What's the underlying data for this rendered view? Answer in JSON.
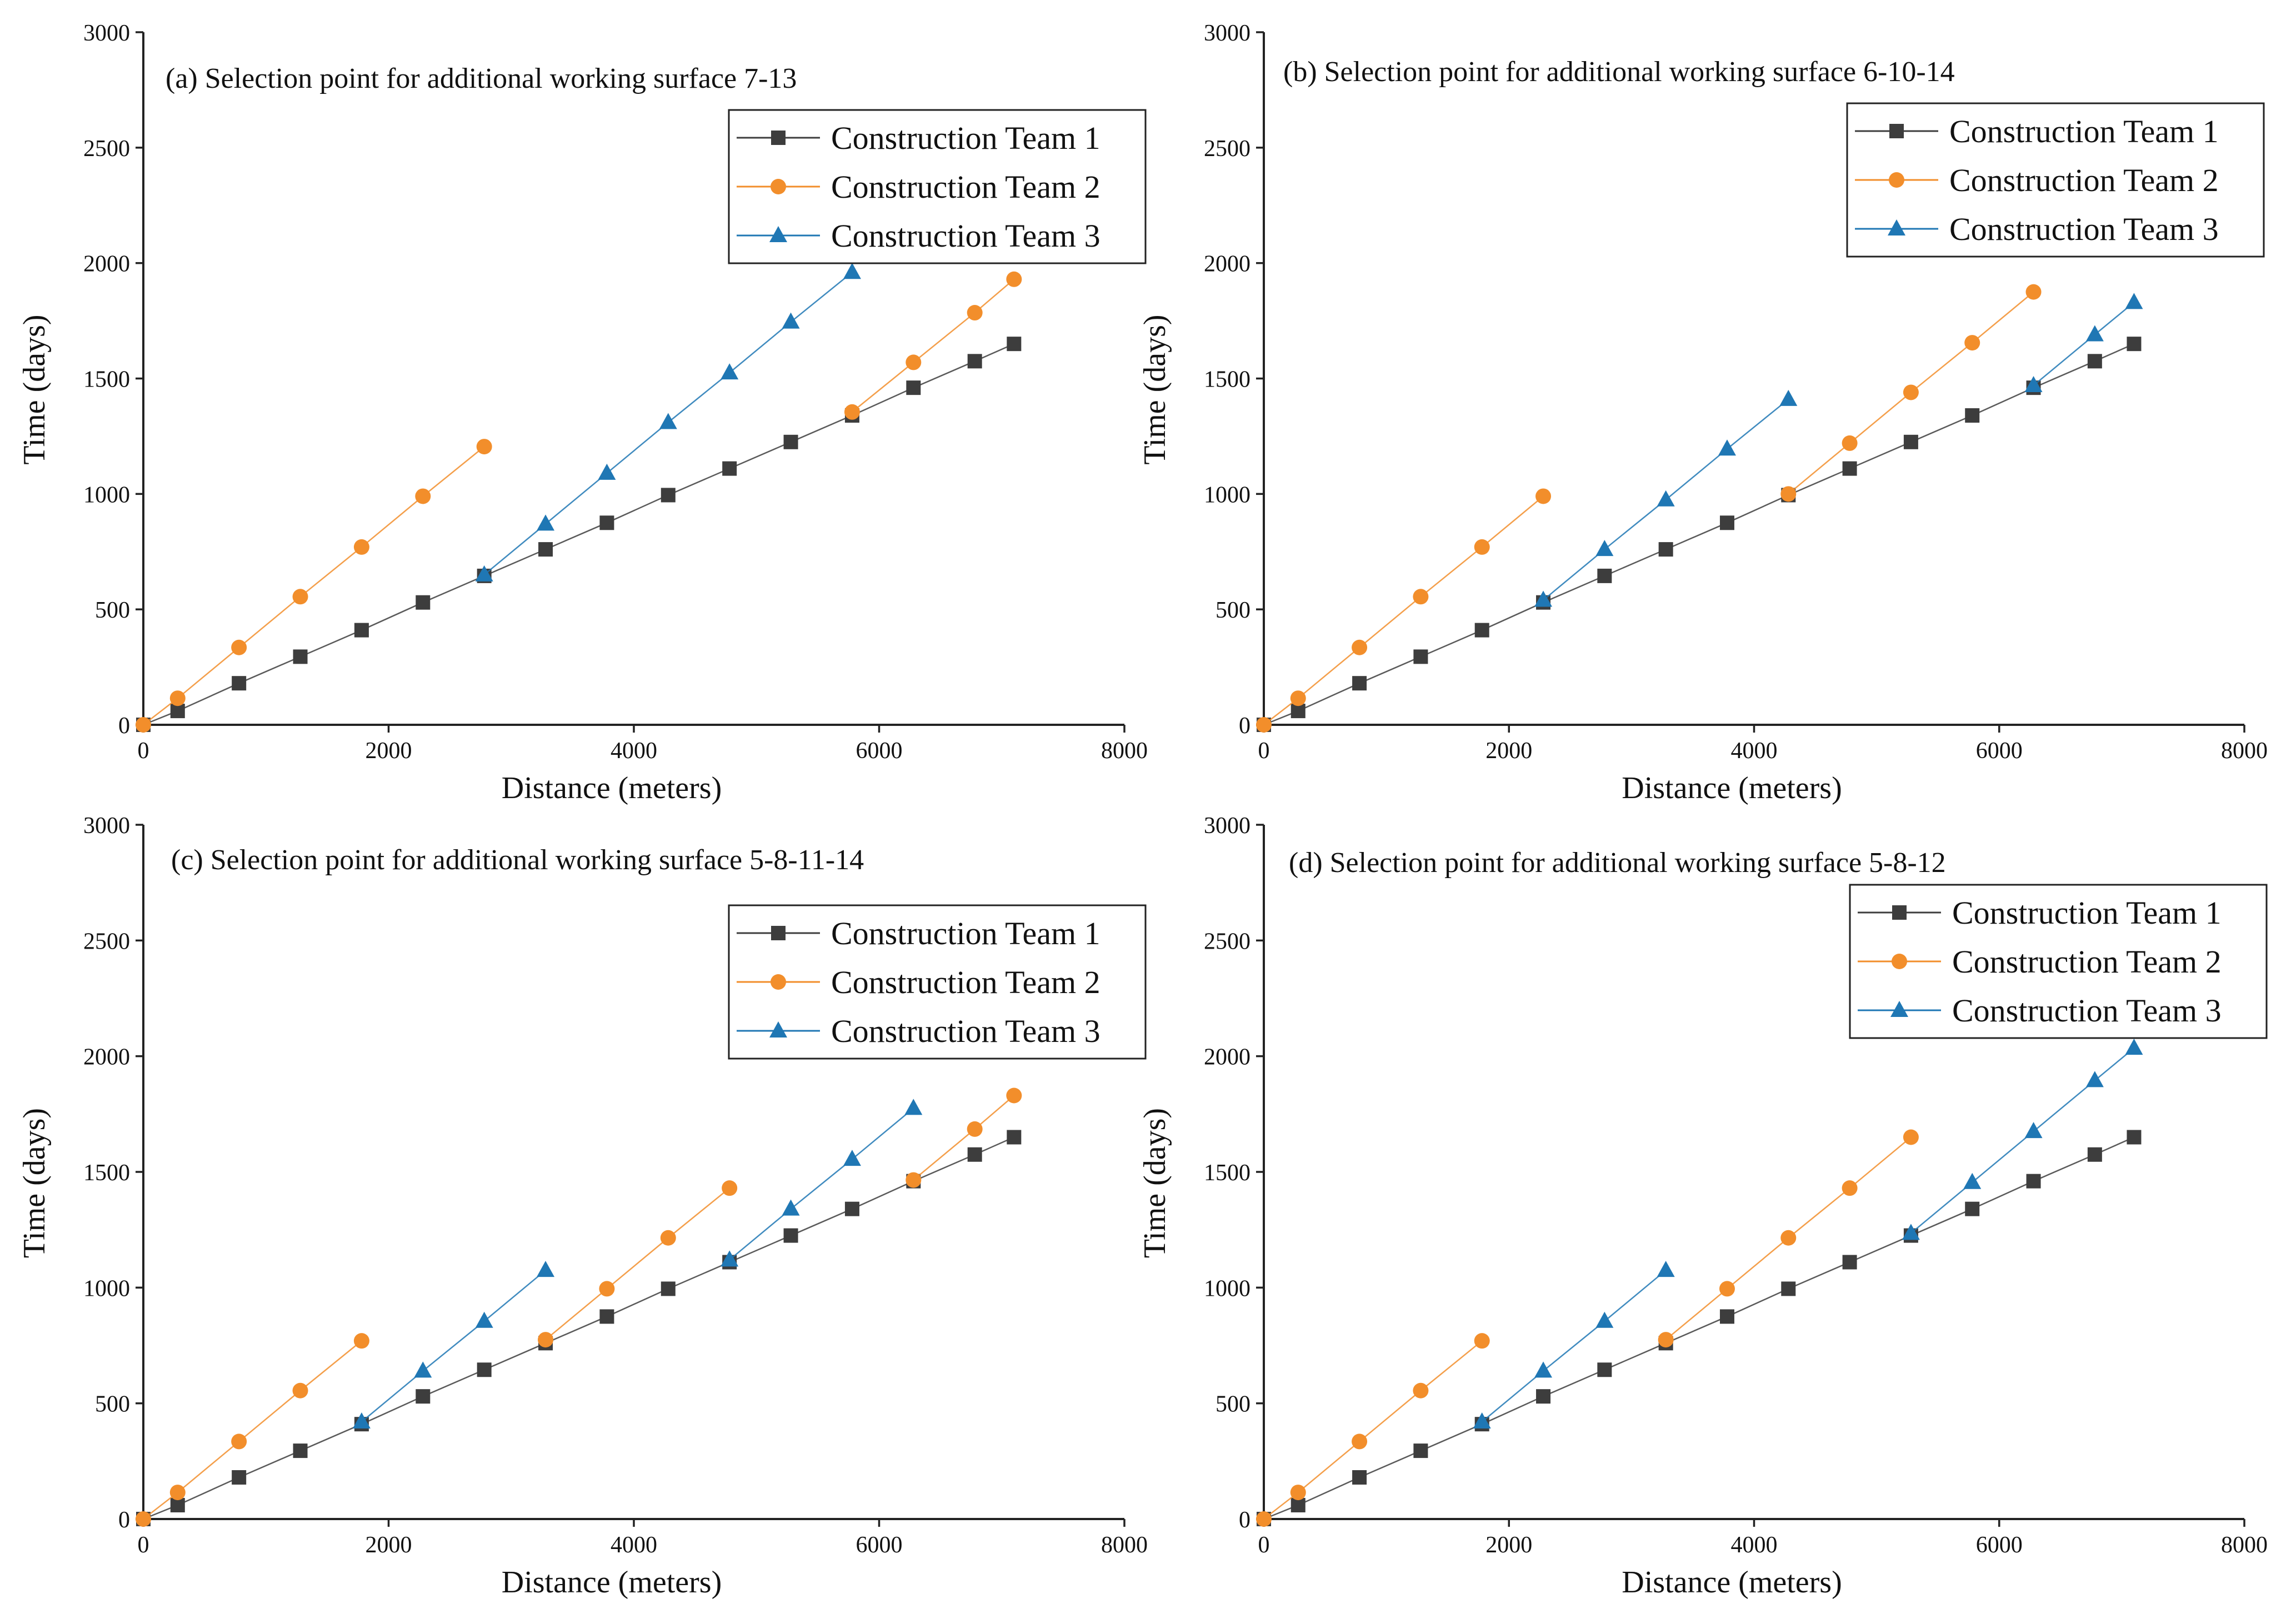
{
  "chart_data": [
    {
      "type": "line",
      "title": "(a) Selection point for additional working surface 7-13",
      "xlabel": "Distance (meters)",
      "ylabel": "Time (days)",
      "xlim": [
        0,
        8000
      ],
      "ylim": [
        0,
        3000
      ],
      "xticks": [
        0,
        2000,
        4000,
        6000,
        8000
      ],
      "yticks": [
        0,
        500,
        1000,
        1500,
        2000,
        2500,
        3000
      ],
      "legend_position": "top-right",
      "series": [
        {
          "name": "Construction Team 1",
          "color": "#3d3d3d",
          "marker": "square",
          "x": [
            0,
            280,
            780,
            1280,
            1780,
            2280,
            2780,
            3280,
            3780,
            4280,
            4780,
            5280,
            5780,
            6280,
            6780,
            7100
          ],
          "y": [
            0,
            60,
            180,
            295,
            410,
            530,
            645,
            760,
            875,
            995,
            1110,
            1225,
            1340,
            1460,
            1575,
            1650
          ]
        },
        {
          "name": "Construction Team 2",
          "color": "#f28e2b",
          "marker": "circle",
          "x": [
            0,
            280,
            780,
            1280,
            1780,
            2280,
            2780
          ],
          "y": [
            0,
            115,
            335,
            555,
            770,
            990,
            1205
          ],
          "x2": [
            5780,
            6280,
            6780,
            7100
          ],
          "y2": [
            1355,
            1570,
            1785,
            1930
          ]
        },
        {
          "name": "Construction Team 3",
          "color": "#1f77b4",
          "marker": "triangle",
          "x": [
            2780,
            3280,
            3780,
            4280,
            4780,
            5280,
            5780
          ],
          "y": [
            650,
            870,
            1090,
            1310,
            1525,
            1745,
            1960
          ]
        }
      ]
    },
    {
      "type": "line",
      "title": "(b) Selection point for additional working surface 6-10-14",
      "xlabel": "Distance (meters)",
      "ylabel": "Time (days)",
      "xlim": [
        0,
        8000
      ],
      "ylim": [
        0,
        3000
      ],
      "xticks": [
        0,
        2000,
        4000,
        6000,
        8000
      ],
      "yticks": [
        0,
        500,
        1000,
        1500,
        2000,
        2500,
        3000
      ],
      "legend_position": "top-right",
      "series": [
        {
          "name": "Construction Team 1",
          "color": "#3d3d3d",
          "marker": "square",
          "x": [
            0,
            280,
            780,
            1280,
            1780,
            2280,
            2780,
            3280,
            3780,
            4280,
            4780,
            5280,
            5780,
            6280,
            6780,
            7100
          ],
          "y": [
            0,
            60,
            180,
            295,
            410,
            530,
            645,
            760,
            875,
            995,
            1110,
            1225,
            1340,
            1460,
            1575,
            1650
          ]
        },
        {
          "name": "Construction Team 2",
          "color": "#f28e2b",
          "marker": "circle",
          "x": [
            0,
            280,
            780,
            1280,
            1780,
            2280
          ],
          "y": [
            0,
            115,
            335,
            555,
            770,
            990
          ],
          "x2": [
            4280,
            4780,
            5280,
            5780,
            6280
          ],
          "y2": [
            1000,
            1220,
            1440,
            1655,
            1875
          ]
        },
        {
          "name": "Construction Team 3",
          "color": "#1f77b4",
          "marker": "triangle",
          "x": [
            2280,
            2780,
            3280,
            3780,
            4280
          ],
          "y": [
            540,
            760,
            975,
            1195,
            1410
          ],
          "x2": [
            6280,
            6780,
            7100
          ],
          "y2": [
            1470,
            1690,
            1830
          ]
        }
      ]
    },
    {
      "type": "line",
      "title": "(c) Selection point for additional working surface 5-8-11-14",
      "xlabel": "Distance (meters)",
      "ylabel": "Time (days)",
      "xlim": [
        0,
        8000
      ],
      "ylim": [
        0,
        3000
      ],
      "xticks": [
        0,
        2000,
        4000,
        6000,
        8000
      ],
      "yticks": [
        0,
        500,
        1000,
        1500,
        2000,
        2500,
        3000
      ],
      "legend_position": "top-right",
      "series": [
        {
          "name": "Construction Team 1",
          "color": "#3d3d3d",
          "marker": "square",
          "x": [
            0,
            280,
            780,
            1280,
            1780,
            2280,
            2780,
            3280,
            3780,
            4280,
            4780,
            5280,
            5780,
            6280,
            6780,
            7100
          ],
          "y": [
            0,
            60,
            180,
            295,
            410,
            530,
            645,
            760,
            875,
            995,
            1110,
            1225,
            1340,
            1460,
            1575,
            1650
          ]
        },
        {
          "name": "Construction Team 2",
          "color": "#f28e2b",
          "marker": "circle",
          "x": [
            0,
            280,
            780,
            1280,
            1780
          ],
          "y": [
            0,
            115,
            335,
            555,
            770
          ],
          "x2": [
            3280,
            3780,
            4280,
            4780
          ],
          "y2": [
            775,
            995,
            1215,
            1430
          ],
          "x3": [
            6280,
            6780,
            7100
          ],
          "y3": [
            1465,
            1685,
            1830
          ]
        },
        {
          "name": "Construction Team 3",
          "color": "#1f77b4",
          "marker": "triangle",
          "x": [
            1780,
            2280,
            2780,
            3280
          ],
          "y": [
            420,
            640,
            855,
            1075
          ],
          "x2": [
            4780,
            5280,
            5780,
            6280
          ],
          "y2": [
            1120,
            1340,
            1555,
            1775
          ]
        }
      ]
    },
    {
      "type": "line",
      "title": "(d) Selection point for additional working surface 5-8-12",
      "xlabel": "Distance (meters)",
      "ylabel": "Time (days)",
      "xlim": [
        0,
        8000
      ],
      "ylim": [
        0,
        3000
      ],
      "xticks": [
        0,
        2000,
        4000,
        6000,
        8000
      ],
      "yticks": [
        0,
        500,
        1000,
        1500,
        2000,
        2500,
        3000
      ],
      "legend_position": "top-right",
      "series": [
        {
          "name": "Construction Team 1",
          "color": "#3d3d3d",
          "marker": "square",
          "x": [
            0,
            280,
            780,
            1280,
            1780,
            2280,
            2780,
            3280,
            3780,
            4280,
            4780,
            5280,
            5780,
            6280,
            6780,
            7100
          ],
          "y": [
            0,
            60,
            180,
            295,
            410,
            530,
            645,
            760,
            875,
            995,
            1110,
            1225,
            1340,
            1460,
            1575,
            1650
          ]
        },
        {
          "name": "Construction Team 2",
          "color": "#f28e2b",
          "marker": "circle",
          "x": [
            0,
            280,
            780,
            1280,
            1780
          ],
          "y": [
            0,
            115,
            335,
            555,
            770
          ],
          "x2": [
            3280,
            3780,
            4280,
            4780,
            5280
          ],
          "y2": [
            775,
            995,
            1215,
            1430,
            1650
          ]
        },
        {
          "name": "Construction Team 3",
          "color": "#1f77b4",
          "marker": "triangle",
          "x": [
            1780,
            2280,
            2780,
            3280
          ],
          "y": [
            420,
            640,
            855,
            1075
          ],
          "x2": [
            5280,
            5780,
            6280,
            6780,
            7100
          ],
          "y2": [
            1235,
            1455,
            1675,
            1895,
            2035
          ]
        }
      ]
    }
  ]
}
